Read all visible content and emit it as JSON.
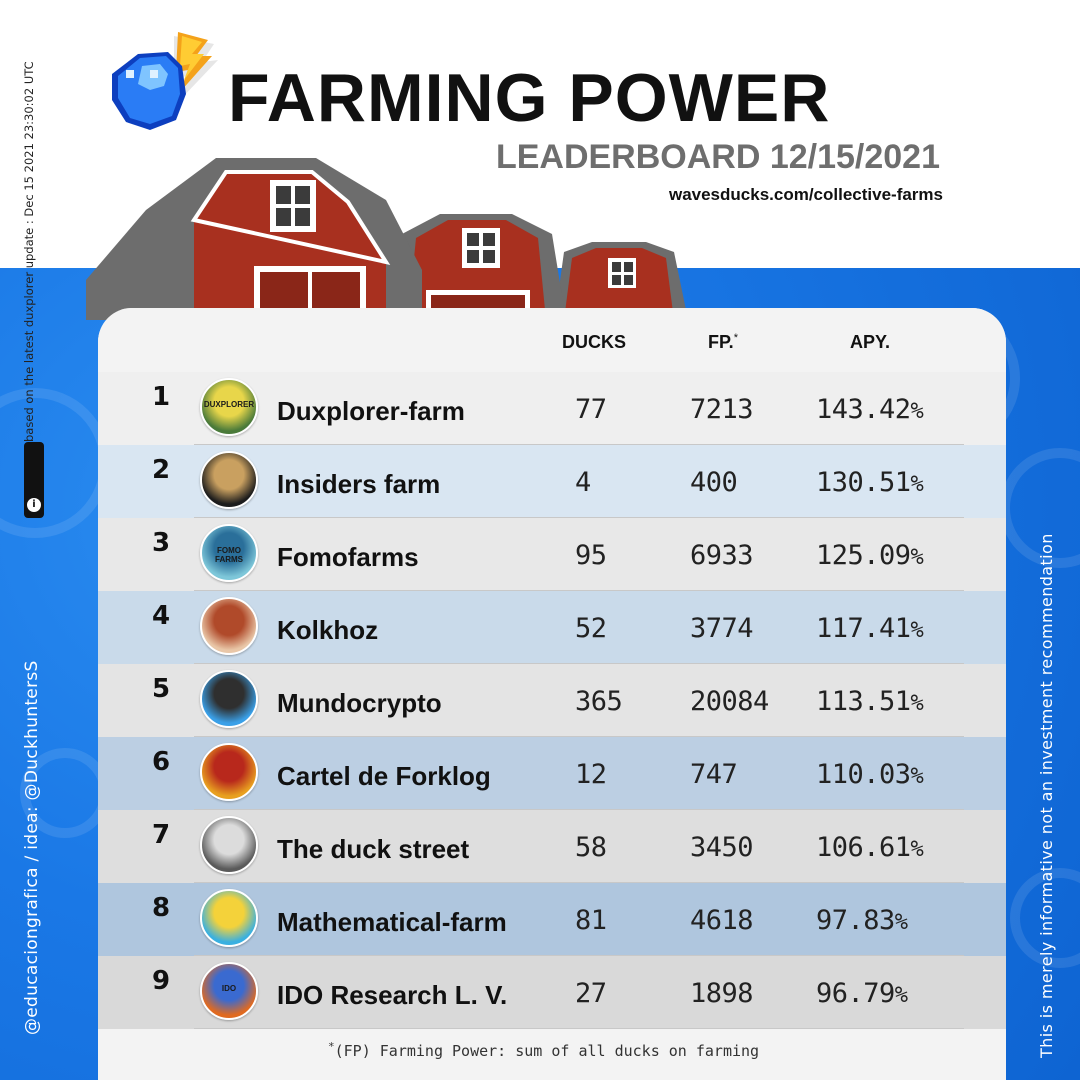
{
  "header": {
    "title": "FARMING POWER",
    "subtitle": "LEADERBOARD 12/15/2021",
    "url": "wavesducks.com/collective-farms"
  },
  "side": {
    "update_note": "based on the latest duxplorer update : Dec 15 2021 23:30:02 UTC",
    "info_icon": "info-icon",
    "credit": "@educaciongrafica / idea: @DuckhuntersS",
    "disclaimer": "This is merely informative not an investment recommendation"
  },
  "table": {
    "col_ducks": "DUCKS",
    "col_fp": "FP.",
    "col_fp_mark": "*",
    "col_apy": "APY.",
    "rows": [
      {
        "rank": "1",
        "name": "Duxplorer-farm",
        "ducks": "77",
        "fp": "7213",
        "apy": "143.42",
        "avatar_text": "DUXPLORER"
      },
      {
        "rank": "2",
        "name": "Insiders farm",
        "ducks": "4",
        "fp": "400",
        "apy": "130.51",
        "avatar_text": ""
      },
      {
        "rank": "3",
        "name": "Fomofarms",
        "ducks": "95",
        "fp": "6933",
        "apy": "125.09",
        "avatar_text": "FOMO FARMS"
      },
      {
        "rank": "4",
        "name": "Kolkhoz",
        "ducks": "52",
        "fp": "3774",
        "apy": "117.41",
        "avatar_text": ""
      },
      {
        "rank": "5",
        "name": "Mundocrypto",
        "ducks": "365",
        "fp": "20084",
        "apy": "113.51",
        "avatar_text": ""
      },
      {
        "rank": "6",
        "name": "Cartel de Forklog",
        "ducks": "12",
        "fp": "747",
        "apy": "110.03",
        "avatar_text": ""
      },
      {
        "rank": "7",
        "name": "The duck street",
        "ducks": "58",
        "fp": "3450",
        "apy": "106.61",
        "avatar_text": ""
      },
      {
        "rank": "8",
        "name": "Mathematical-farm",
        "ducks": "81",
        "fp": "4618",
        "apy": "97.83",
        "avatar_text": ""
      },
      {
        "rank": "9",
        "name": "IDO Research L. V.",
        "ducks": "27",
        "fp": "1898",
        "apy": "96.79",
        "avatar_text": "IDO"
      }
    ],
    "percent_sign": "%"
  },
  "footnote": {
    "mark": "*",
    "text": "(FP) Farming Power:  sum of all ducks on farming"
  },
  "colors": {
    "background_blue": "#1a78e6",
    "row_light": "#ececec",
    "row_blue_tints": [
      "#d9e6f2",
      "#c9daea",
      "#bccfe3",
      "#afc6de"
    ],
    "barn_red": "#a8301f",
    "roof_gray": "#6d6d6d"
  }
}
